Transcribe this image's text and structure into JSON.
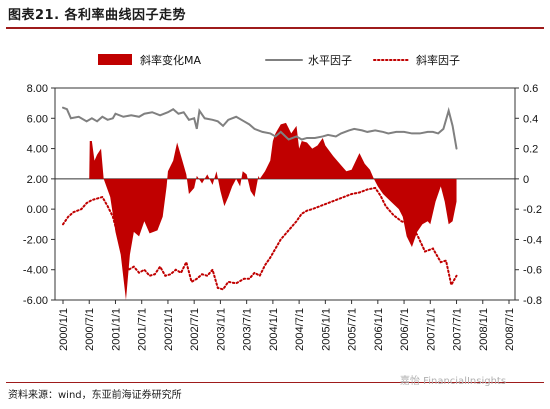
{
  "header": {
    "title": "图表21. 各利率曲线因子走势"
  },
  "footer": {
    "source": "资料来源：wind，东亚前海证券研究所",
    "watermark": "嘉怡 FinancialInsights"
  },
  "colors": {
    "slope_ma": "#c00000",
    "level": "#808080",
    "slope": "#c00000",
    "title_rule": "#9e1b1b"
  },
  "chart_data": {
    "type": "area",
    "legend_position": "top",
    "grid": false,
    "x_ticks": [
      "2000/1/1",
      "2000/7/1",
      "2001/1/1",
      "2001/7/1",
      "2002/1/1",
      "2002/7/1",
      "2003/1/1",
      "2003/7/1",
      "2004/1/1",
      "2004/7/1",
      "2005/1/1",
      "2005/7/1",
      "2006/1/1",
      "2006/7/1",
      "2007/1/1",
      "2007/7/1",
      "2008/1/1",
      "2008/7/1"
    ],
    "y_left": {
      "min": -6,
      "max": 8,
      "ticks": [
        "-6.00",
        "-4.00",
        "-2.00",
        "0.00",
        "2.00",
        "4.00",
        "6.00",
        "8.00"
      ]
    },
    "y_right": {
      "min": -0.8,
      "max": 0.6,
      "ticks": [
        "-0.8",
        "-0.6",
        "-0.4",
        "-0.2",
        "0",
        "0.2",
        "0.4",
        "0.6"
      ]
    },
    "series": [
      {
        "name": "斜率变化MA",
        "type": "area",
        "axis": "right",
        "points": [
          [
            1.0,
            0
          ],
          [
            1.02,
            0.25
          ],
          [
            1.1,
            0.25
          ],
          [
            1.2,
            0.12
          ],
          [
            1.3,
            0.16
          ],
          [
            1.45,
            0.2
          ],
          [
            1.5,
            0.1
          ],
          [
            1.55,
            0
          ],
          [
            1.8,
            -0.12
          ],
          [
            2.0,
            -0.35
          ],
          [
            2.2,
            -0.5
          ],
          [
            2.4,
            -0.8
          ],
          [
            2.55,
            -0.5
          ],
          [
            2.7,
            -0.35
          ],
          [
            2.9,
            -0.38
          ],
          [
            3.1,
            -0.28
          ],
          [
            3.3,
            -0.36
          ],
          [
            3.6,
            -0.34
          ],
          [
            3.8,
            -0.25
          ],
          [
            3.95,
            -0.05
          ],
          [
            4.0,
            0.05
          ],
          [
            4.2,
            0.12
          ],
          [
            4.35,
            0.24
          ],
          [
            4.5,
            0.15
          ],
          [
            4.7,
            0.03
          ],
          [
            4.8,
            -0.1
          ],
          [
            5.0,
            -0.06
          ],
          [
            5.1,
            0.02
          ],
          [
            5.3,
            -0.03
          ],
          [
            5.5,
            0.03
          ],
          [
            5.7,
            -0.04
          ],
          [
            5.85,
            0.05
          ],
          [
            6.0,
            -0.08
          ],
          [
            6.15,
            -0.18
          ],
          [
            6.3,
            -0.12
          ],
          [
            6.45,
            -0.05
          ],
          [
            6.6,
            0.0
          ],
          [
            6.75,
            -0.05
          ],
          [
            6.85,
            0.05
          ],
          [
            7.0,
            0.03
          ],
          [
            7.15,
            -0.08
          ],
          [
            7.3,
            -0.12
          ],
          [
            7.45,
            0.02
          ],
          [
            7.5,
            0.0
          ],
          [
            7.7,
            0.05
          ],
          [
            7.9,
            0.12
          ],
          [
            8.0,
            0.25
          ],
          [
            8.1,
            0.3
          ],
          [
            8.3,
            0.36
          ],
          [
            8.5,
            0.37
          ],
          [
            8.7,
            0.3
          ],
          [
            8.9,
            0.35
          ],
          [
            9.0,
            0.2
          ],
          [
            9.1,
            0.25
          ],
          [
            9.3,
            0.24
          ],
          [
            9.5,
            0.2
          ],
          [
            9.7,
            0.22
          ],
          [
            9.9,
            0.27
          ],
          [
            10.0,
            0.22
          ],
          [
            10.3,
            0.15
          ],
          [
            10.6,
            0.09
          ],
          [
            10.8,
            0.05
          ],
          [
            11.0,
            0.06
          ],
          [
            11.3,
            0.17
          ],
          [
            11.5,
            0.1
          ],
          [
            11.7,
            0.06
          ],
          [
            11.85,
            0.0
          ],
          [
            12.0,
            -0.05
          ],
          [
            12.2,
            -0.1
          ],
          [
            12.5,
            -0.15
          ],
          [
            12.8,
            -0.2
          ],
          [
            12.95,
            -0.25
          ],
          [
            13.1,
            -0.38
          ],
          [
            13.3,
            -0.45
          ],
          [
            13.5,
            -0.35
          ],
          [
            13.7,
            -0.3
          ],
          [
            13.9,
            -0.28
          ],
          [
            14.0,
            -0.3
          ],
          [
            14.2,
            -0.15
          ],
          [
            14.4,
            -0.05
          ],
          [
            14.55,
            -0.15
          ],
          [
            14.7,
            -0.3
          ],
          [
            14.85,
            -0.28
          ],
          [
            15.0,
            -0.15
          ]
        ]
      },
      {
        "name": "水平因子",
        "type": "line",
        "axis": "right",
        "points": [
          [
            0.0,
            0.47
          ],
          [
            0.15,
            0.46
          ],
          [
            0.3,
            0.4
          ],
          [
            0.6,
            0.41
          ],
          [
            0.9,
            0.38
          ],
          [
            1.1,
            0.4
          ],
          [
            1.3,
            0.38
          ],
          [
            1.5,
            0.41
          ],
          [
            1.7,
            0.39
          ],
          [
            1.9,
            0.4
          ],
          [
            2.0,
            0.43
          ],
          [
            2.3,
            0.41
          ],
          [
            2.6,
            0.42
          ],
          [
            2.9,
            0.41
          ],
          [
            3.1,
            0.43
          ],
          [
            3.4,
            0.44
          ],
          [
            3.7,
            0.42
          ],
          [
            4.0,
            0.44
          ],
          [
            4.2,
            0.46
          ],
          [
            4.4,
            0.43
          ],
          [
            4.6,
            0.44
          ],
          [
            4.8,
            0.39
          ],
          [
            5.0,
            0.4
          ],
          [
            5.1,
            0.33
          ],
          [
            5.2,
            0.45
          ],
          [
            5.4,
            0.4
          ],
          [
            5.7,
            0.39
          ],
          [
            5.9,
            0.38
          ],
          [
            6.1,
            0.35
          ],
          [
            6.3,
            0.39
          ],
          [
            6.6,
            0.41
          ],
          [
            6.9,
            0.38
          ],
          [
            7.1,
            0.36
          ],
          [
            7.3,
            0.33
          ],
          [
            7.6,
            0.31
          ],
          [
            7.9,
            0.3
          ],
          [
            8.1,
            0.28
          ],
          [
            8.3,
            0.31
          ],
          [
            8.6,
            0.26
          ],
          [
            8.9,
            0.28
          ],
          [
            9.1,
            0.26
          ],
          [
            9.3,
            0.27
          ],
          [
            9.6,
            0.27
          ],
          [
            9.9,
            0.28
          ],
          [
            10.1,
            0.29
          ],
          [
            10.4,
            0.28
          ],
          [
            10.6,
            0.3
          ],
          [
            10.9,
            0.32
          ],
          [
            11.1,
            0.33
          ],
          [
            11.4,
            0.32
          ],
          [
            11.6,
            0.31
          ],
          [
            11.9,
            0.32
          ],
          [
            12.2,
            0.31
          ],
          [
            12.4,
            0.3
          ],
          [
            12.7,
            0.31
          ],
          [
            13.0,
            0.31
          ],
          [
            13.3,
            0.3
          ],
          [
            13.6,
            0.3
          ],
          [
            13.9,
            0.31
          ],
          [
            14.1,
            0.31
          ],
          [
            14.3,
            0.3
          ],
          [
            14.5,
            0.33
          ],
          [
            14.7,
            0.45
          ],
          [
            14.85,
            0.35
          ],
          [
            15.0,
            0.2
          ]
        ]
      },
      {
        "name": "斜率因子",
        "type": "line",
        "style": "dotted",
        "axis": "right",
        "points": [
          [
            0.0,
            -0.3
          ],
          [
            0.2,
            -0.25
          ],
          [
            0.4,
            -0.22
          ],
          [
            0.7,
            -0.2
          ],
          [
            0.9,
            -0.16
          ],
          [
            1.1,
            -0.14
          ],
          [
            1.3,
            -0.13
          ],
          [
            1.5,
            -0.12
          ],
          [
            1.7,
            -0.18
          ],
          [
            1.9,
            -0.25
          ],
          [
            2.1,
            -0.38
          ],
          [
            2.3,
            -0.52
          ],
          [
            2.5,
            -0.6
          ],
          [
            2.7,
            -0.58
          ],
          [
            2.9,
            -0.62
          ],
          [
            3.1,
            -0.6
          ],
          [
            3.3,
            -0.64
          ],
          [
            3.5,
            -0.63
          ],
          [
            3.7,
            -0.58
          ],
          [
            3.9,
            -0.64
          ],
          [
            4.1,
            -0.63
          ],
          [
            4.3,
            -0.6
          ],
          [
            4.5,
            -0.62
          ],
          [
            4.7,
            -0.55
          ],
          [
            4.9,
            -0.68
          ],
          [
            5.1,
            -0.66
          ],
          [
            5.3,
            -0.63
          ],
          [
            5.5,
            -0.64
          ],
          [
            5.7,
            -0.6
          ],
          [
            5.9,
            -0.72
          ],
          [
            6.1,
            -0.73
          ],
          [
            6.3,
            -0.68
          ],
          [
            6.6,
            -0.69
          ],
          [
            6.9,
            -0.66
          ],
          [
            7.1,
            -0.66
          ],
          [
            7.3,
            -0.62
          ],
          [
            7.5,
            -0.64
          ],
          [
            7.7,
            -0.57
          ],
          [
            7.9,
            -0.52
          ],
          [
            8.1,
            -0.46
          ],
          [
            8.3,
            -0.4
          ],
          [
            8.5,
            -0.36
          ],
          [
            8.7,
            -0.32
          ],
          [
            8.9,
            -0.28
          ],
          [
            9.1,
            -0.23
          ],
          [
            9.3,
            -0.21
          ],
          [
            9.5,
            -0.2
          ],
          [
            9.8,
            -0.18
          ],
          [
            10.1,
            -0.16
          ],
          [
            10.4,
            -0.14
          ],
          [
            10.7,
            -0.12
          ],
          [
            11.0,
            -0.1
          ],
          [
            11.3,
            -0.09
          ],
          [
            11.6,
            -0.07
          ],
          [
            11.9,
            -0.06
          ],
          [
            12.1,
            -0.11
          ],
          [
            12.3,
            -0.18
          ],
          [
            12.6,
            -0.24
          ],
          [
            12.9,
            -0.28
          ],
          [
            13.2,
            -0.3
          ],
          [
            13.5,
            -0.37
          ],
          [
            13.8,
            -0.48
          ],
          [
            14.1,
            -0.46
          ],
          [
            14.4,
            -0.55
          ],
          [
            14.6,
            -0.54
          ],
          [
            14.8,
            -0.7
          ],
          [
            15.0,
            -0.64
          ]
        ]
      }
    ]
  }
}
